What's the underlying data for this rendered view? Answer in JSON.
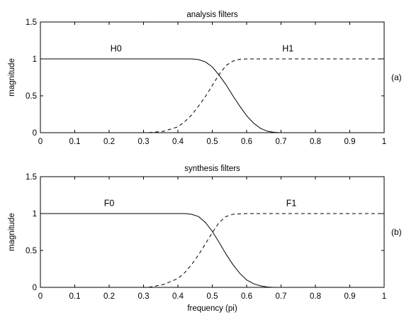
{
  "chart_data": [
    {
      "type": "line",
      "title": "analysis filters",
      "xlabel": "",
      "ylabel": "magnitude",
      "panel_label": "(a)",
      "xlim": [
        0,
        1
      ],
      "ylim": [
        0,
        1.5
      ],
      "x_ticks": [
        "0",
        "0.1",
        "0.2",
        "0.3",
        "0.4",
        "0.5",
        "0.6",
        "0.7",
        "0.8",
        "0.9",
        "1"
      ],
      "y_ticks": [
        "0",
        "0.5",
        "1",
        "1.5"
      ],
      "grid": false,
      "legend": "none",
      "series": [
        {
          "name": "H0",
          "style": "solid",
          "label_at": [
            0.22,
            1.1
          ],
          "x": [
            0,
            0.1,
            0.2,
            0.3,
            0.4,
            0.44,
            0.46,
            0.48,
            0.5,
            0.52,
            0.54,
            0.56,
            0.58,
            0.6,
            0.62,
            0.64,
            0.66,
            0.68,
            0.7,
            0.75,
            0.8,
            0.9,
            1.0
          ],
          "values": [
            1,
            1,
            1,
            1,
            1,
            1.0,
            0.99,
            0.96,
            0.89,
            0.78,
            0.65,
            0.5,
            0.36,
            0.23,
            0.13,
            0.06,
            0.02,
            0.005,
            0,
            0,
            0,
            0,
            0
          ]
        },
        {
          "name": "H1",
          "style": "dashed",
          "label_at": [
            0.72,
            1.1
          ],
          "x": [
            0,
            0.1,
            0.2,
            0.3,
            0.32,
            0.36,
            0.4,
            0.42,
            0.44,
            0.46,
            0.48,
            0.5,
            0.52,
            0.54,
            0.56,
            0.58,
            0.6,
            0.7,
            0.8,
            0.9,
            1.0
          ],
          "values": [
            0,
            0,
            0,
            0,
            0.003,
            0.02,
            0.08,
            0.15,
            0.24,
            0.36,
            0.49,
            0.64,
            0.79,
            0.91,
            0.97,
            0.995,
            1,
            1,
            1,
            1,
            1
          ]
        }
      ]
    },
    {
      "type": "line",
      "title": "synthesis filters",
      "xlabel": "frequency (pi)",
      "ylabel": "magnitude",
      "panel_label": "(b)",
      "xlim": [
        0,
        1
      ],
      "ylim": [
        0,
        1.5
      ],
      "x_ticks": [
        "0",
        "0.1",
        "0.2",
        "0.3",
        "0.4",
        "0.5",
        "0.6",
        "0.7",
        "0.8",
        "0.9",
        "1"
      ],
      "y_ticks": [
        "0",
        "0.5",
        "1",
        "1.5"
      ],
      "grid": false,
      "legend": "none",
      "series": [
        {
          "name": "F0",
          "style": "solid",
          "label_at": [
            0.2,
            1.1
          ],
          "x": [
            0,
            0.1,
            0.2,
            0.3,
            0.4,
            0.42,
            0.44,
            0.46,
            0.48,
            0.5,
            0.52,
            0.54,
            0.56,
            0.58,
            0.6,
            0.62,
            0.64,
            0.66,
            0.68,
            0.7,
            0.8,
            0.9,
            1.0
          ],
          "values": [
            1,
            1,
            1,
            1,
            1,
            1.0,
            0.99,
            0.96,
            0.88,
            0.76,
            0.61,
            0.45,
            0.31,
            0.19,
            0.1,
            0.05,
            0.02,
            0.005,
            0,
            0,
            0,
            0,
            0
          ]
        },
        {
          "name": "F1",
          "style": "dashed",
          "label_at": [
            0.73,
            1.1
          ],
          "x": [
            0,
            0.1,
            0.2,
            0.3,
            0.32,
            0.36,
            0.4,
            0.42,
            0.44,
            0.46,
            0.48,
            0.5,
            0.52,
            0.54,
            0.56,
            0.6,
            0.7,
            0.8,
            0.9,
            1.0
          ],
          "values": [
            0,
            0,
            0,
            0,
            0.005,
            0.04,
            0.12,
            0.2,
            0.31,
            0.44,
            0.59,
            0.74,
            0.88,
            0.96,
            0.99,
            1,
            1,
            1,
            1,
            1
          ]
        }
      ]
    }
  ]
}
